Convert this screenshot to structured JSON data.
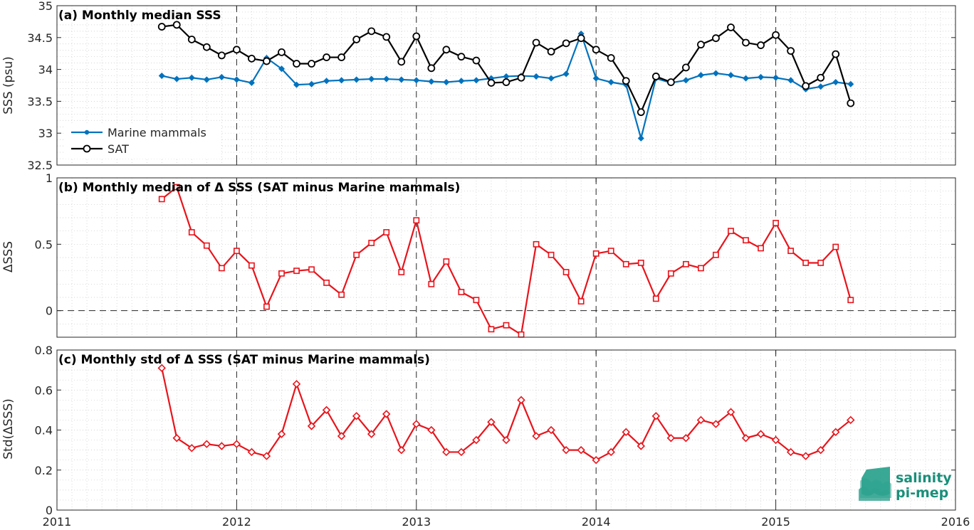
{
  "colors": {
    "mammals": "#0072BD",
    "sat": "#000000",
    "delta": "#E8141B",
    "logo_text": "#1a8f7a",
    "logo_shape": "#2ea38f"
  },
  "logo": {
    "line1": "salinity",
    "line2": "pi-mep"
  },
  "chart_data": [
    {
      "type": "line",
      "title": "(a) Monthly median SSS",
      "ylabel": "SSS (psu)",
      "xlim": [
        2011,
        2016
      ],
      "ylim": [
        32.5,
        35
      ],
      "yticks": [
        "32.5",
        "33",
        "33.5",
        "34",
        "34.5",
        "35"
      ],
      "grid": true,
      "legend": "bottom-left",
      "x": [
        "2011-08",
        "2011-09",
        "2011-10",
        "2011-11",
        "2011-12",
        "2012-01",
        "2012-02",
        "2012-03",
        "2012-04",
        "2012-05",
        "2012-06",
        "2012-07",
        "2012-08",
        "2012-09",
        "2012-10",
        "2012-11",
        "2012-12",
        "2013-01",
        "2013-02",
        "2013-03",
        "2013-04",
        "2013-05",
        "2013-06",
        "2013-07",
        "2013-08",
        "2013-09",
        "2013-10",
        "2013-11",
        "2013-12",
        "2014-01",
        "2014-02",
        "2014-03",
        "2014-04",
        "2014-05",
        "2014-06",
        "2014-07",
        "2014-08",
        "2014-09",
        "2014-10",
        "2014-11",
        "2014-12",
        "2015-01",
        "2015-02",
        "2015-03",
        "2015-04",
        "2015-05",
        "2015-06"
      ],
      "series": [
        {
          "name": "Marine mammals",
          "values": [
            33.9,
            33.85,
            33.87,
            33.84,
            33.88,
            33.84,
            33.79,
            34.18,
            34.01,
            33.76,
            33.77,
            33.82,
            33.83,
            33.84,
            33.85,
            33.85,
            33.84,
            33.83,
            33.81,
            33.8,
            33.82,
            33.83,
            33.86,
            33.89,
            33.9,
            33.89,
            33.86,
            33.93,
            34.56,
            33.86,
            33.8,
            33.76,
            32.92,
            33.86,
            33.79,
            33.83,
            33.91,
            33.94,
            33.91,
            33.86,
            33.88,
            33.87,
            33.83,
            33.69,
            33.73,
            33.8,
            33.77
          ]
        },
        {
          "name": "SAT",
          "values": [
            34.67,
            34.7,
            34.47,
            34.35,
            34.22,
            34.31,
            34.17,
            34.13,
            34.27,
            34.09,
            34.09,
            34.19,
            34.19,
            34.47,
            34.6,
            34.51,
            34.12,
            34.52,
            34.02,
            34.31,
            34.2,
            34.14,
            33.79,
            33.8,
            33.87,
            34.42,
            34.28,
            34.41,
            34.49,
            34.31,
            34.18,
            33.82,
            33.33,
            33.89,
            33.8,
            34.03,
            34.39,
            34.49,
            34.66,
            34.42,
            34.38,
            34.54,
            34.29,
            33.74,
            33.87,
            34.24,
            33.47
          ]
        }
      ]
    },
    {
      "type": "line",
      "title": "(b) Monthly median of Δ SSS (SAT minus Marine mammals)",
      "ylabel": "ΔSSS",
      "xlim": [
        2011,
        2016
      ],
      "ylim": [
        -0.2,
        1
      ],
      "yticks": [
        "0",
        "0.5",
        "1"
      ],
      "grid": true,
      "x": [
        "2011-08",
        "2011-09",
        "2011-10",
        "2011-11",
        "2011-12",
        "2012-01",
        "2012-02",
        "2012-03",
        "2012-04",
        "2012-05",
        "2012-06",
        "2012-07",
        "2012-08",
        "2012-09",
        "2012-10",
        "2012-11",
        "2012-12",
        "2013-01",
        "2013-02",
        "2013-03",
        "2013-04",
        "2013-05",
        "2013-06",
        "2013-07",
        "2013-08",
        "2013-09",
        "2013-10",
        "2013-11",
        "2013-12",
        "2014-01",
        "2014-02",
        "2014-03",
        "2014-04",
        "2014-05",
        "2014-06",
        "2014-07",
        "2014-08",
        "2014-09",
        "2014-10",
        "2014-11",
        "2014-12",
        "2015-01",
        "2015-02",
        "2015-03",
        "2015-04",
        "2015-05",
        "2015-06"
      ],
      "series": [
        {
          "name": "",
          "values": [
            0.84,
            0.93,
            0.59,
            0.49,
            0.32,
            0.45,
            0.34,
            0.03,
            0.28,
            0.3,
            0.31,
            0.21,
            0.12,
            0.42,
            0.51,
            0.59,
            0.29,
            0.68,
            0.2,
            0.37,
            0.14,
            0.08,
            -0.14,
            -0.11,
            -0.18,
            0.5,
            0.42,
            0.29,
            0.07,
            0.43,
            0.45,
            0.35,
            0.36,
            0.09,
            0.28,
            0.35,
            0.32,
            0.42,
            0.6,
            0.53,
            0.47,
            0.66,
            0.45,
            0.36,
            0.36,
            0.48,
            0.08
          ]
        }
      ]
    },
    {
      "type": "line",
      "title": "(c) Monthly std of Δ SSS (SAT minus Marine mammals)",
      "ylabel": "Std(ΔSSS)",
      "xlim": [
        2011,
        2016
      ],
      "ylim": [
        0,
        0.8
      ],
      "yticks": [
        "0",
        "0.2",
        "0.4",
        "0.6",
        "0.8"
      ],
      "xticks": [
        "2011",
        "2012",
        "2013",
        "2014",
        "2015",
        "2016"
      ],
      "grid": true,
      "x": [
        "2011-08",
        "2011-09",
        "2011-10",
        "2011-11",
        "2011-12",
        "2012-01",
        "2012-02",
        "2012-03",
        "2012-04",
        "2012-05",
        "2012-06",
        "2012-07",
        "2012-08",
        "2012-09",
        "2012-10",
        "2012-11",
        "2012-12",
        "2013-01",
        "2013-02",
        "2013-03",
        "2013-04",
        "2013-05",
        "2013-06",
        "2013-07",
        "2013-08",
        "2013-09",
        "2013-10",
        "2013-11",
        "2013-12",
        "2014-01",
        "2014-02",
        "2014-03",
        "2014-04",
        "2014-05",
        "2014-06",
        "2014-07",
        "2014-08",
        "2014-09",
        "2014-10",
        "2014-11",
        "2014-12",
        "2015-01",
        "2015-02",
        "2015-03",
        "2015-04",
        "2015-05",
        "2015-06"
      ],
      "series": [
        {
          "name": "",
          "values": [
            0.71,
            0.36,
            0.31,
            0.33,
            0.32,
            0.33,
            0.29,
            0.27,
            0.38,
            0.63,
            0.42,
            0.5,
            0.37,
            0.47,
            0.38,
            0.48,
            0.3,
            0.43,
            0.4,
            0.29,
            0.29,
            0.35,
            0.44,
            0.35,
            0.55,
            0.37,
            0.4,
            0.3,
            0.3,
            0.25,
            0.29,
            0.39,
            0.32,
            0.47,
            0.36,
            0.36,
            0.45,
            0.43,
            0.49,
            0.36,
            0.38,
            0.35,
            0.29,
            0.27,
            0.3,
            0.39,
            0.45
          ]
        }
      ]
    }
  ]
}
